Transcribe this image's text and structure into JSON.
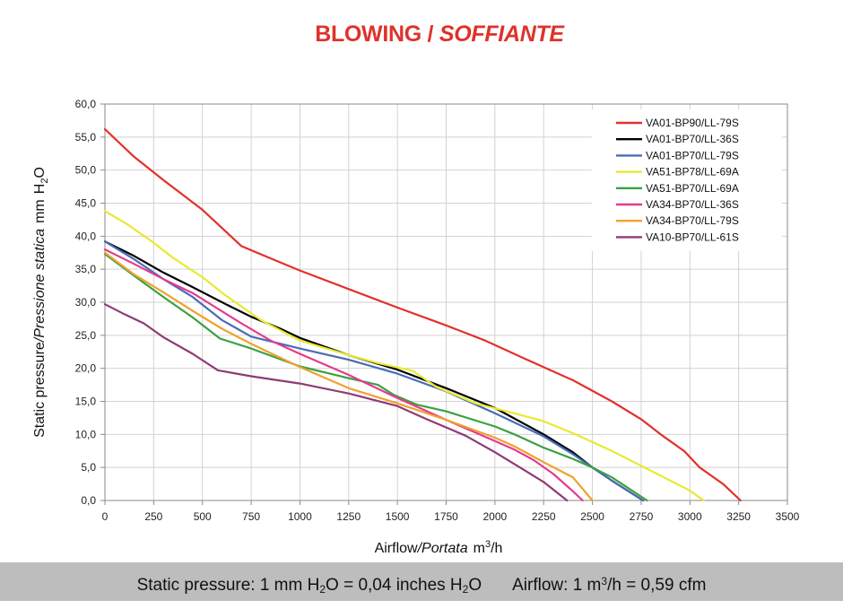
{
  "title": {
    "main": "BLOWING",
    "sep": " / ",
    "italic": "SOFFIANTE"
  },
  "axes": {
    "ylabel_a": "Static pressure",
    "ylabel_sep": "/",
    "ylabel_b": "Pressione statica",
    "ylabel_unit": "mm",
    "ylabel_unit_h": "H",
    "ylabel_unit_sub": "2",
    "ylabel_unit_o": "O",
    "xlabel_a": "Airflow",
    "xlabel_sep": "/",
    "xlabel_b": "Portata",
    "xlabel_unit": "m",
    "xlabel_unit_sup": "3",
    "xlabel_unit_end": "/h"
  },
  "footer": {
    "p1": "Static pressure: 1 mm H",
    "p1_sub": "2",
    "p2": "O = 0,04 inches H",
    "p2_sub": "2",
    "p3": "O",
    "p4": "Airflow: 1 m",
    "p4_sup": "3",
    "p5": "/h = 0,59 cfm"
  },
  "chart_data": {
    "type": "line",
    "xlim": [
      0,
      3500
    ],
    "ylim": [
      0,
      60
    ],
    "x_ticks": [
      0,
      250,
      500,
      750,
      1000,
      1250,
      1500,
      1750,
      2000,
      2250,
      2500,
      2750,
      3000,
      3250,
      3500
    ],
    "x_tick_labels": [
      "0",
      "250",
      "500",
      "750",
      "1000",
      "1250",
      "1500",
      "1750",
      "2000",
      "2250",
      "2500",
      "2750",
      "3000",
      "3250",
      "3500"
    ],
    "y_ticks": [
      0,
      5,
      10,
      15,
      20,
      25,
      30,
      35,
      40,
      45,
      50,
      55,
      60
    ],
    "y_tick_labels": [
      "0,0",
      "5,0",
      "10,0",
      "15,0",
      "20,0",
      "25,0",
      "30,0",
      "35,0",
      "40,0",
      "45,0",
      "50,0",
      "55,0",
      "60,0"
    ],
    "grid": true,
    "legend_position": "top-right",
    "series": [
      {
        "name": "VA01-BP90/LL-79S",
        "color": "#e2312b",
        "points": [
          [
            0,
            56.2
          ],
          [
            150,
            52
          ],
          [
            300,
            48.5
          ],
          [
            500,
            44
          ],
          [
            700,
            38.5
          ],
          [
            820,
            37
          ],
          [
            1000,
            34.8
          ],
          [
            1250,
            32
          ],
          [
            1500,
            29.2
          ],
          [
            1750,
            26.5
          ],
          [
            1950,
            24.2
          ],
          [
            2150,
            21.5
          ],
          [
            2400,
            18.2
          ],
          [
            2600,
            15
          ],
          [
            2750,
            12.3
          ],
          [
            2850,
            10
          ],
          [
            2970,
            7.5
          ],
          [
            3050,
            5
          ],
          [
            3170,
            2.5
          ],
          [
            3260,
            0
          ]
        ]
      },
      {
        "name": "VA01-BP70/LL-36S",
        "color": "#000000",
        "points": [
          [
            0,
            39.2
          ],
          [
            150,
            37
          ],
          [
            300,
            34.5
          ],
          [
            450,
            32.3
          ],
          [
            620,
            29.7
          ],
          [
            750,
            27.8
          ],
          [
            900,
            26
          ],
          [
            1000,
            24.6
          ],
          [
            1250,
            22
          ],
          [
            1500,
            19.8
          ],
          [
            1750,
            17
          ],
          [
            2000,
            14
          ],
          [
            2250,
            10
          ],
          [
            2400,
            7.3
          ],
          [
            2500,
            5
          ],
          [
            2600,
            3
          ],
          [
            2760,
            0
          ]
        ]
      },
      {
        "name": "VA01-BP70/LL-79S",
        "color": "#4a6bb5",
        "points": [
          [
            0,
            39.2
          ],
          [
            150,
            36.5
          ],
          [
            300,
            33.5
          ],
          [
            450,
            30.8
          ],
          [
            600,
            27.3
          ],
          [
            750,
            24.8
          ],
          [
            1000,
            23
          ],
          [
            1250,
            21.3
          ],
          [
            1500,
            19.2
          ],
          [
            1750,
            16.5
          ],
          [
            2000,
            13.2
          ],
          [
            2250,
            9.7
          ],
          [
            2400,
            7
          ],
          [
            2500,
            5
          ],
          [
            2600,
            3
          ],
          [
            2760,
            0
          ]
        ]
      },
      {
        "name": "VA51-BP78/LL-69A",
        "color": "#e9e932",
        "points": [
          [
            0,
            43.8
          ],
          [
            120,
            41.7
          ],
          [
            250,
            39
          ],
          [
            350,
            36.7
          ],
          [
            500,
            33.8
          ],
          [
            620,
            31
          ],
          [
            800,
            27.3
          ],
          [
            1000,
            24.2
          ],
          [
            1250,
            22
          ],
          [
            1400,
            20.8
          ],
          [
            1580,
            19.6
          ],
          [
            1700,
            17.2
          ],
          [
            1900,
            14.7
          ],
          [
            2100,
            13.2
          ],
          [
            2250,
            12
          ],
          [
            2400,
            10.2
          ],
          [
            2600,
            7.5
          ],
          [
            2800,
            4.5
          ],
          [
            3000,
            1.5
          ],
          [
            3070,
            0
          ]
        ]
      },
      {
        "name": "VA51-BP70/LL-69A",
        "color": "#3aa142",
        "points": [
          [
            0,
            37.3
          ],
          [
            150,
            34
          ],
          [
            300,
            30.8
          ],
          [
            450,
            27.7
          ],
          [
            590,
            24.5
          ],
          [
            750,
            23
          ],
          [
            1000,
            20.3
          ],
          [
            1250,
            18.5
          ],
          [
            1400,
            17.5
          ],
          [
            1480,
            16
          ],
          [
            1600,
            14.5
          ],
          [
            1750,
            13.5
          ],
          [
            2000,
            11.2
          ],
          [
            2100,
            10
          ],
          [
            2250,
            8
          ],
          [
            2400,
            6.3
          ],
          [
            2500,
            5
          ],
          [
            2600,
            3.5
          ],
          [
            2780,
            0
          ]
        ]
      },
      {
        "name": "VA34-BP70/LL-36S",
        "color": "#e43c8c",
        "points": [
          [
            0,
            38
          ],
          [
            150,
            35.8
          ],
          [
            300,
            33.5
          ],
          [
            450,
            31.4
          ],
          [
            700,
            26.8
          ],
          [
            850,
            24.2
          ],
          [
            1000,
            22.2
          ],
          [
            1250,
            19
          ],
          [
            1500,
            15.5
          ],
          [
            1750,
            12.2
          ],
          [
            2000,
            9
          ],
          [
            2100,
            7.7
          ],
          [
            2200,
            6.1
          ],
          [
            2300,
            4
          ],
          [
            2400,
            1.4
          ],
          [
            2450,
            0
          ]
        ]
      },
      {
        "name": "VA34-BP70/LL-79S",
        "color": "#f0a12e",
        "points": [
          [
            0,
            37.5
          ],
          [
            150,
            34.2
          ],
          [
            300,
            31.5
          ],
          [
            450,
            28.7
          ],
          [
            600,
            26
          ],
          [
            750,
            23.7
          ],
          [
            1000,
            20.2
          ],
          [
            1250,
            17
          ],
          [
            1500,
            14.7
          ],
          [
            1750,
            12.2
          ],
          [
            2000,
            9.5
          ],
          [
            2100,
            8.2
          ],
          [
            2250,
            5.8
          ],
          [
            2400,
            3.5
          ],
          [
            2500,
            0
          ]
        ]
      },
      {
        "name": "VA10-BP70/LL-61S",
        "color": "#8e3b74",
        "points": [
          [
            0,
            29.7
          ],
          [
            100,
            28.2
          ],
          [
            200,
            26.8
          ],
          [
            300,
            24.7
          ],
          [
            450,
            22.2
          ],
          [
            580,
            19.7
          ],
          [
            750,
            18.8
          ],
          [
            1000,
            17.7
          ],
          [
            1250,
            16.2
          ],
          [
            1500,
            14.3
          ],
          [
            1650,
            12.3
          ],
          [
            1850,
            9.8
          ],
          [
            2000,
            7.3
          ],
          [
            2150,
            4.6
          ],
          [
            2250,
            2.8
          ],
          [
            2370,
            0
          ]
        ]
      }
    ]
  }
}
